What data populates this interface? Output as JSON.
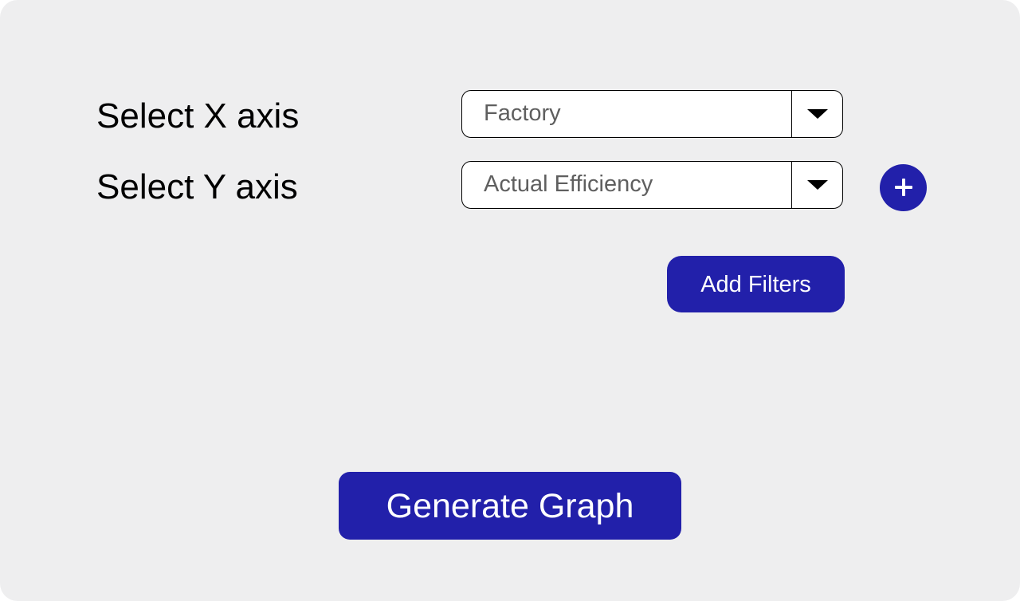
{
  "form": {
    "x_axis": {
      "label": "Select X axis",
      "selected": "Factory",
      "icon": "chevron-down-icon"
    },
    "y_axis": {
      "label": "Select Y axis",
      "selected": "Actual Efficiency",
      "icon": "chevron-down-icon"
    },
    "add_y_axis": {
      "icon": "plus-icon"
    },
    "add_filters_label": "Add Filters",
    "generate_label": "Generate Graph"
  },
  "colors": {
    "background": "#eeeeef",
    "accent": "#2220aa",
    "text": "#000000",
    "select_text": "#5f5f5f"
  }
}
